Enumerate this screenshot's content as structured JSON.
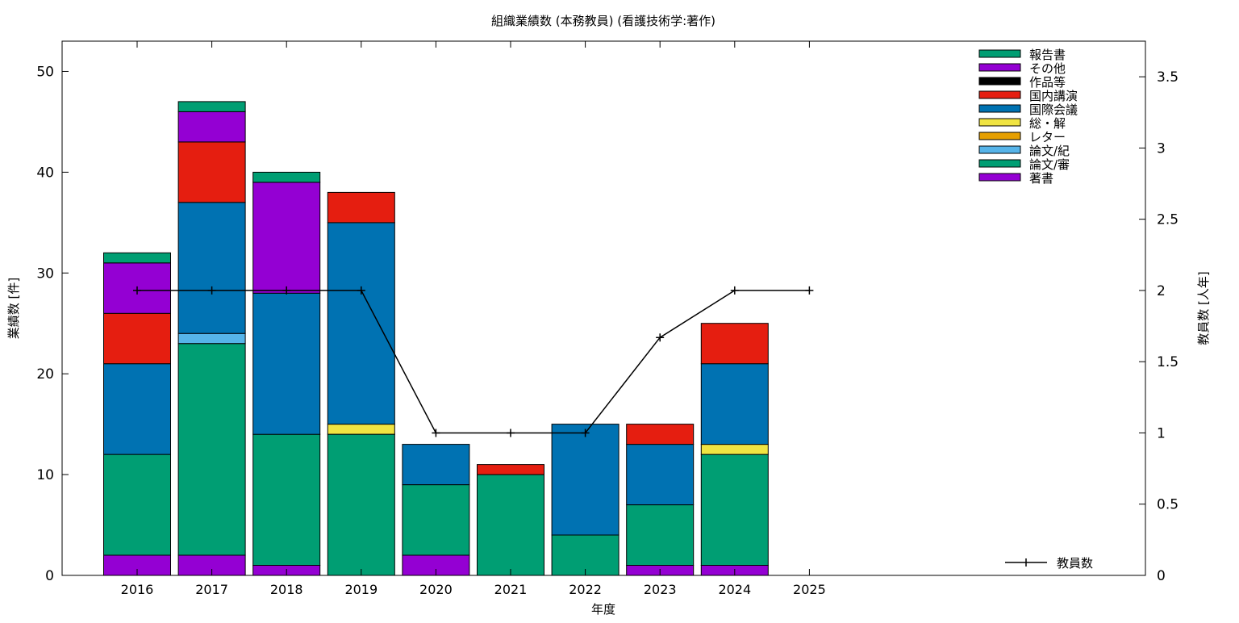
{
  "chart_data": {
    "type": "bar",
    "stacked": true,
    "title": "組織業績数 (本務教員) (看護技術学:著作)",
    "xlabel": "年度",
    "ylabel": "業績数 [件]",
    "y2label": "教員数 [人年]",
    "categories": [
      "2016",
      "2017",
      "2018",
      "2019",
      "2020",
      "2021",
      "2022",
      "2023",
      "2024",
      "2025"
    ],
    "ylim": [
      0,
      53
    ],
    "yticks": [
      0,
      10,
      20,
      30,
      40,
      50
    ],
    "y2lim": [
      0,
      3.75
    ],
    "y2ticks": [
      "0",
      "0.5",
      "1",
      "1.5",
      "2",
      "2.5",
      "3",
      "3.5"
    ],
    "grid": false,
    "legend_position": "top-right",
    "series": [
      {
        "name": "著書",
        "color": "#9400d3",
        "values": [
          2,
          2,
          1,
          0,
          2,
          0,
          0,
          1,
          1,
          0
        ]
      },
      {
        "name": "論文/審",
        "color": "#009e73",
        "values": [
          10,
          21,
          13,
          14,
          7,
          10,
          4,
          6,
          11,
          0
        ]
      },
      {
        "name": "論文/紀",
        "color": "#56b4e9",
        "values": [
          0,
          1,
          0,
          0,
          0,
          0,
          0,
          0,
          0,
          0
        ]
      },
      {
        "name": "レター",
        "color": "#e69f00",
        "values": [
          0,
          0,
          0,
          0,
          0,
          0,
          0,
          0,
          0,
          0
        ]
      },
      {
        "name": "総・解",
        "color": "#f0e442",
        "values": [
          0,
          0,
          0,
          1,
          0,
          0,
          0,
          0,
          1,
          0
        ]
      },
      {
        "name": "国際会議",
        "color": "#0072b2",
        "values": [
          9,
          13,
          14,
          20,
          4,
          0,
          11,
          6,
          8,
          0
        ]
      },
      {
        "name": "国内講演",
        "color": "#e51e10",
        "values": [
          5,
          6,
          0,
          3,
          0,
          1,
          0,
          2,
          4,
          0
        ]
      },
      {
        "name": "作品等",
        "color": "#000000",
        "values": [
          0,
          0,
          0,
          0,
          0,
          0,
          0,
          0,
          0,
          0
        ]
      },
      {
        "name": "その他",
        "color": "#9400d3",
        "values": [
          5,
          3,
          11,
          0,
          0,
          0,
          0,
          0,
          0,
          0
        ]
      },
      {
        "name": "報告書",
        "color": "#009e73",
        "values": [
          1,
          1,
          1,
          0,
          0,
          0,
          0,
          0,
          0,
          0
        ]
      }
    ],
    "line_series": {
      "name": "教員数",
      "color": "#000000",
      "axis": "y2",
      "values": [
        2,
        2,
        2,
        2,
        1,
        1,
        1,
        1.67,
        2,
        2
      ]
    }
  }
}
